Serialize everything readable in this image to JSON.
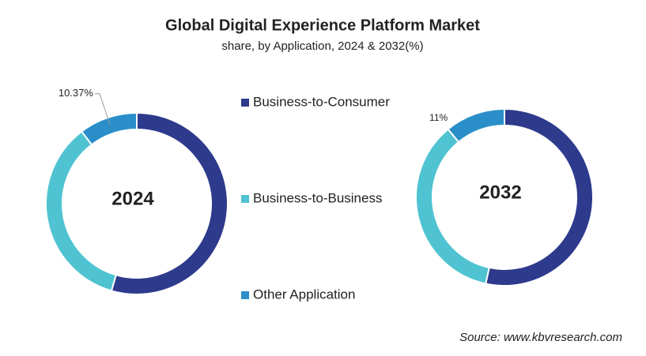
{
  "title": "Global Digital Experience Platform Market",
  "subtitle": "share, by Application, 2024 & 2032(%)",
  "source": "Source: www.kbvresearch.com",
  "chart_data": {
    "type": "donut",
    "categories": [
      "Business-to-Consumer",
      "Business-to-Business",
      "Other Application"
    ],
    "colors": [
      "#2e3a8c",
      "#4fc3d1",
      "#2a8fc9"
    ],
    "series": [
      {
        "name": "2024",
        "values": [
          54.5,
          35.13,
          10.37
        ],
        "value_labels": [
          null,
          null,
          "10.37%"
        ]
      },
      {
        "name": "2032",
        "values": [
          53.4,
          35.6,
          11
        ],
        "value_labels": [
          null,
          null,
          "11%"
        ]
      }
    ]
  }
}
